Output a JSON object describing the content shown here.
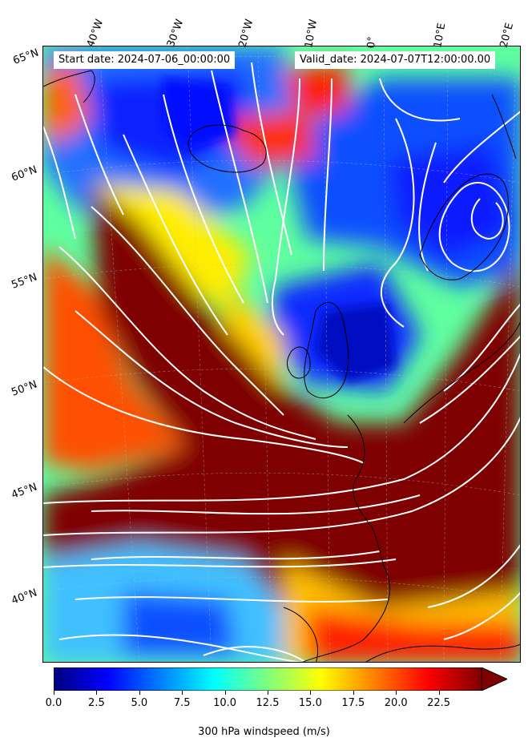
{
  "map": {
    "start_date": "Start date: 2024-07-06_00:00:00",
    "valid_date": "Valid_date: 2024-07-07T12:00:00.00",
    "lon_labels": [
      "40°W",
      "30°W",
      "20°W",
      "10°W",
      "0°",
      "10°E",
      "20°E"
    ],
    "lat_labels": [
      "65°N",
      "60°N",
      "55°N",
      "50°N",
      "45°N",
      "40°N"
    ],
    "field": "wind speed",
    "overlay": "streamlines",
    "streamline_color": "#ffffff",
    "coastline_color": "#000000"
  },
  "colorbar": {
    "label": "300 hPa windspeed (m/s)",
    "ticks": [
      "0.0",
      "2.5",
      "5.0",
      "7.5",
      "10.0",
      "12.5",
      "15.0",
      "17.5",
      "20.0",
      "22.5"
    ],
    "tick_values": [
      0,
      2.5,
      5,
      7.5,
      10,
      12.5,
      15,
      17.5,
      20,
      22.5
    ],
    "range": [
      0,
      25
    ],
    "colormap": "jet",
    "extend": "max",
    "colors": [
      "#00007f",
      "#0000ff",
      "#007fff",
      "#00ffff",
      "#7fff7f",
      "#ffff00",
      "#ff7f00",
      "#ff0000",
      "#7f0000"
    ]
  }
}
